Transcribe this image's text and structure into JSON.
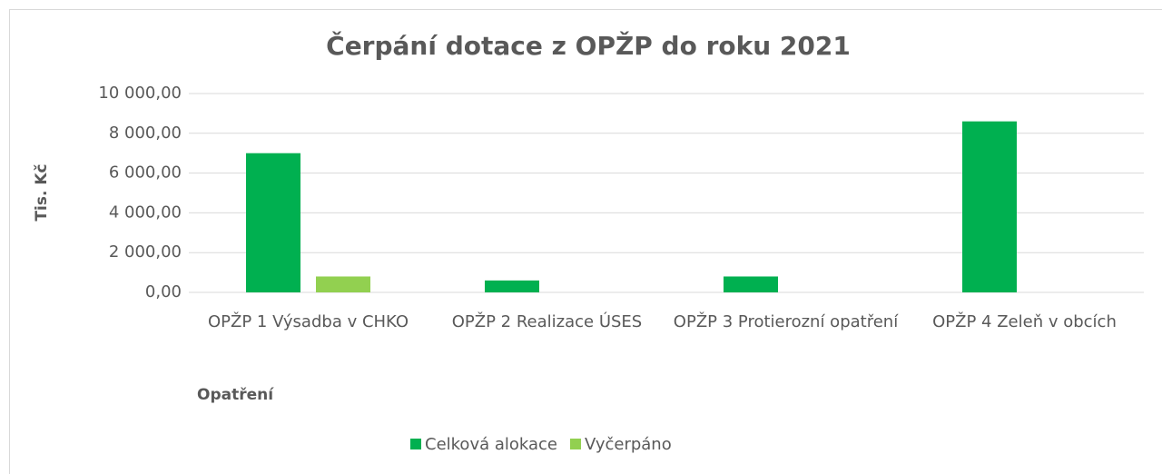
{
  "chart_data": {
    "type": "bar",
    "title": "Čerpání dotace z OPŽP do roku 2021",
    "y_label": "Tis. Kč",
    "x_label": "Opatření",
    "categories": [
      "OPŽP 1 Výsadba v CHKO",
      "OPŽP 2 Realizace ÚSES",
      "OPŽP 3 Protierozní opatření",
      "OPŽP 4 Zeleň v obcích"
    ],
    "series": [
      {
        "name": "Celková alokace",
        "color": "#00b050",
        "values": [
          7000,
          600,
          800,
          8600
        ]
      },
      {
        "name": "Vyčerpáno",
        "color": "#92d050",
        "values": [
          800,
          0,
          0,
          0
        ]
      }
    ],
    "ylim": [
      0,
      10000
    ],
    "yticks": [
      {
        "value": 0,
        "label": "0,00"
      },
      {
        "value": 2000,
        "label": "2 000,00"
      },
      {
        "value": 4000,
        "label": "4 000,00"
      },
      {
        "value": 6000,
        "label": "6 000,00"
      },
      {
        "value": 8000,
        "label": "8 000,00"
      },
      {
        "value": 10000,
        "label": "10 000,00"
      }
    ],
    "grid": true,
    "legend": "bottom"
  }
}
